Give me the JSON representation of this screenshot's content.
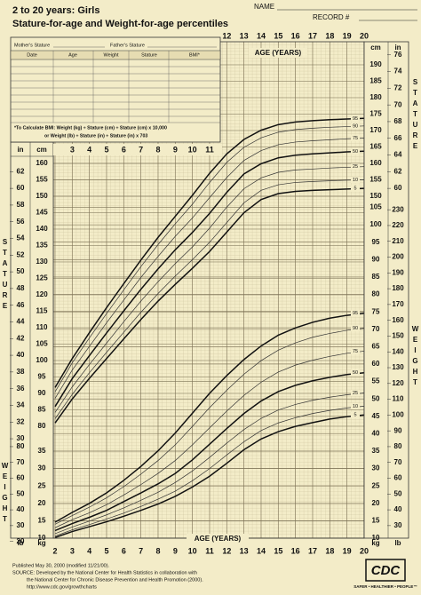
{
  "header": {
    "title": "2 to 20 years: Girls",
    "subtitle": "Stature-for-age and Weight-for-age percentiles",
    "name_label": "NAME",
    "record_label": "RECORD #"
  },
  "form": {
    "mother": "Mother's Stature",
    "father": "Father's Stature",
    "columns": [
      "Date",
      "Age",
      "Weight",
      "Stature",
      "BMI*"
    ],
    "bmi_note": [
      "*To Calculate BMI: Weight (kg) ÷ Stature (cm) ÷ Stature (cm) x 10,000",
      "or Weight (lb) ÷ Stature (in) ÷ Stature (in) x 703"
    ]
  },
  "labels": {
    "age_top": "AGE (YEARS)",
    "age_bottom": "AGE (YEARS)",
    "stature": "STATURE",
    "weight": "WEIGHT",
    "cm": "cm",
    "in": "in",
    "kg": "kg",
    "lb": "lb"
  },
  "footer": [
    "Published May 30, 2000 (modified 11/21/00).",
    "SOURCE: Developed by the National Center for Health Statistics in collaboration with",
    "the National Center for Chronic Disease Prevention and Health Promotion (2000).",
    "http://www.cdc.gov/growthcharts"
  ],
  "logo": {
    "text": "CDC",
    "tagline": "SAFER • HEALTHIER • PEOPLE™"
  },
  "chart_data": [
    {
      "type": "line",
      "grid": true,
      "x": [
        2,
        3,
        4,
        5,
        6,
        7,
        8,
        9,
        10,
        11,
        12,
        13,
        14,
        15,
        16,
        17,
        18,
        19,
        20
      ],
      "xlim": [
        2,
        20
      ],
      "xticks": [
        2,
        3,
        4,
        5,
        6,
        7,
        8,
        9,
        10,
        11,
        12,
        13,
        14,
        15,
        16,
        17,
        18,
        19,
        20
      ],
      "xticks_top": [
        12,
        13,
        14,
        15,
        16,
        17,
        18,
        19,
        20
      ],
      "xticks_mid": [
        3,
        4,
        5,
        6,
        7,
        8,
        9,
        10,
        11
      ],
      "ylim": [
        76,
        194
      ],
      "yticks_left": [
        80,
        85,
        90,
        95,
        100,
        105,
        110,
        115,
        120,
        125,
        130,
        135,
        140,
        145,
        150,
        155,
        160
      ],
      "yticks_right": [
        150,
        155,
        160,
        165,
        170,
        175,
        180,
        185,
        190
      ],
      "y2lim": [
        29.92,
        76.38
      ],
      "y2ticks_left": [
        30,
        32,
        34,
        36,
        38,
        40,
        42,
        44,
        46,
        48,
        50,
        52,
        54,
        56,
        58,
        60,
        62
      ],
      "y2ticks_right": [
        60,
        62,
        64,
        66,
        68,
        70,
        72,
        74,
        76
      ],
      "series": [
        {
          "name": "95",
          "color": "#111",
          "width": 1.5,
          "values": [
            91.8,
            100.6,
            108.5,
            116.1,
            123.4,
            130.6,
            137.5,
            143.9,
            150.3,
            157.0,
            162.9,
            167.3,
            170.1,
            171.8,
            172.6,
            173.0,
            173.3,
            173.5,
            173.7
          ]
        },
        {
          "name": "90",
          "color": "#333",
          "width": 0.7,
          "values": [
            90.5,
            99.3,
            106.9,
            114.3,
            121.5,
            128.6,
            135.3,
            141.6,
            147.6,
            154.2,
            160.3,
            164.9,
            167.8,
            169.5,
            170.3,
            170.7,
            171.0,
            171.2,
            171.4
          ]
        },
        {
          "name": "75",
          "color": "#333",
          "width": 0.7,
          "values": [
            88.5,
            97.1,
            104.3,
            111.5,
            118.4,
            125.3,
            131.7,
            137.8,
            143.4,
            149.6,
            155.7,
            160.9,
            163.9,
            165.7,
            166.5,
            166.9,
            167.2,
            167.5,
            167.7
          ]
        },
        {
          "name": "50",
          "color": "#111",
          "width": 1.5,
          "values": [
            86.0,
            94.5,
            101.5,
            108.4,
            115.1,
            121.7,
            127.9,
            133.7,
            139.0,
            144.8,
            151.2,
            156.8,
            159.9,
            161.7,
            162.5,
            162.9,
            163.2,
            163.5,
            163.7
          ]
        },
        {
          "name": "25",
          "color": "#333",
          "width": 0.7,
          "values": [
            84.2,
            92.0,
            98.8,
            105.3,
            111.8,
            118.1,
            124.0,
            129.5,
            134.6,
            140.3,
            146.7,
            152.3,
            155.6,
            157.3,
            158.0,
            158.3,
            158.6,
            158.8,
            159.0
          ]
        },
        {
          "name": "10",
          "color": "#333",
          "width": 0.7,
          "values": [
            82.3,
            89.7,
            96.3,
            102.5,
            108.6,
            114.7,
            120.4,
            125.7,
            130.7,
            136.0,
            142.0,
            148.0,
            151.8,
            153.5,
            154.2,
            154.5,
            154.7,
            154.9,
            155.0
          ]
        },
        {
          "name": "5",
          "color": "#111",
          "width": 1.5,
          "values": [
            81.0,
            88.3,
            94.6,
            100.6,
            106.6,
            112.5,
            118.1,
            123.2,
            128.1,
            133.2,
            139.1,
            145.0,
            149.0,
            150.8,
            151.5,
            151.8,
            152.0,
            152.2,
            152.4
          ]
        }
      ]
    },
    {
      "type": "line",
      "grid": true,
      "x": [
        2,
        3,
        4,
        5,
        6,
        7,
        8,
        9,
        10,
        11,
        12,
        13,
        14,
        15,
        16,
        17,
        18,
        19,
        20
      ],
      "xlim": [
        2,
        20
      ],
      "ylim": [
        6,
        106
      ],
      "yticks_left": [
        10,
        15,
        20,
        25,
        30,
        35
      ],
      "yticks_right": [
        10,
        15,
        20,
        25,
        30,
        35,
        40,
        45,
        50,
        55,
        60,
        65,
        70,
        75,
        80,
        85,
        90,
        95,
        100,
        105
      ],
      "y2lim": [
        13.23,
        233.69
      ],
      "y2ticks_left": [
        20,
        30,
        40,
        50,
        60,
        70,
        80
      ],
      "y2ticks_right": [
        30,
        40,
        50,
        60,
        70,
        80,
        90,
        100,
        110,
        120,
        130,
        140,
        150,
        160,
        170,
        180,
        190,
        200,
        210,
        220,
        230
      ],
      "series": [
        {
          "name": "95",
          "color": "#111",
          "width": 1.5,
          "values": [
            14.6,
            17.4,
            20.0,
            23.0,
            26.6,
            30.6,
            35.1,
            40.2,
            45.9,
            51.6,
            56.7,
            61.3,
            65.2,
            68.3,
            70.4,
            72.0,
            73.2,
            74.0,
            74.6
          ]
        },
        {
          "name": "90",
          "color": "#333",
          "width": 0.7,
          "values": [
            14.0,
            16.5,
            18.9,
            21.6,
            24.8,
            28.4,
            32.3,
            36.8,
            42.1,
            47.5,
            52.5,
            57.1,
            61.0,
            64.0,
            66.1,
            67.7,
            68.8,
            69.7,
            70.3
          ]
        },
        {
          "name": "75",
          "color": "#333",
          "width": 0.7,
          "values": [
            13.0,
            15.3,
            17.3,
            19.6,
            22.4,
            25.4,
            28.6,
            32.3,
            36.8,
            41.7,
            46.5,
            51.0,
            54.8,
            57.7,
            59.7,
            61.1,
            62.2,
            63.1,
            63.7
          ]
        },
        {
          "name": "50",
          "color": "#111",
          "width": 1.5,
          "values": [
            12.2,
            14.2,
            16.0,
            18.0,
            20.5,
            23.0,
            25.6,
            28.6,
            32.5,
            37.0,
            41.5,
            45.8,
            49.4,
            52.1,
            53.9,
            55.2,
            56.2,
            57.0,
            57.5
          ]
        },
        {
          "name": "25",
          "color": "#333",
          "width": 0.7,
          "values": [
            11.3,
            13.2,
            14.9,
            16.7,
            18.7,
            20.9,
            23.2,
            26.0,
            29.3,
            33.2,
            37.3,
            41.2,
            44.4,
            46.8,
            48.4,
            49.6,
            50.5,
            51.2,
            51.7
          ]
        },
        {
          "name": "10",
          "color": "#333",
          "width": 0.7,
          "values": [
            10.6,
            12.4,
            13.9,
            15.5,
            17.2,
            19.1,
            21.2,
            23.5,
            26.5,
            30.0,
            33.9,
            37.7,
            40.9,
            43.1,
            44.6,
            45.8,
            46.7,
            47.4,
            47.9
          ]
        },
        {
          "name": "5",
          "color": "#111",
          "width": 1.5,
          "values": [
            10.2,
            11.9,
            13.3,
            14.7,
            16.3,
            18.0,
            19.8,
            22.0,
            24.7,
            27.8,
            31.5,
            35.4,
            38.5,
            40.6,
            42.1,
            43.2,
            44.2,
            44.9,
            45.4
          ]
        }
      ]
    }
  ]
}
